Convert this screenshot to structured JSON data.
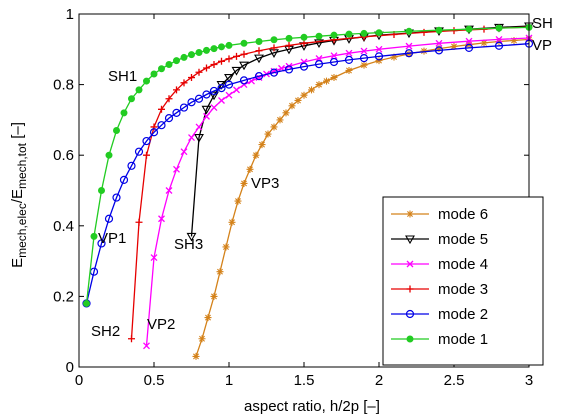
{
  "chart_data": {
    "type": "line",
    "xlabel": "aspect ratio, h/2p [–]",
    "ylabel_main": "E",
    "ylabel_sub1": "mech,elec",
    "ylabel_mid": "/E",
    "ylabel_sub2": "mech,tot",
    "ylabel_tail": " [–]",
    "xlim": [
      0,
      3
    ],
    "ylim": [
      0,
      1
    ],
    "xticks": [
      "0",
      "0.5",
      "1",
      "1.5",
      "2",
      "2.5",
      "3"
    ],
    "yticks": [
      "0",
      "0.2",
      "0.4",
      "0.6",
      "0.8",
      "1"
    ],
    "grid": false,
    "legend_position": "bottom-right",
    "annotations": [
      "SH",
      "VP",
      "SH1",
      "VP1",
      "SH2",
      "VP2",
      "SH3",
      "VP3"
    ],
    "series": [
      {
        "name": "mode 6",
        "color": "#d4821a",
        "marker": "asterisk",
        "x": [
          0.78,
          0.82,
          0.86,
          0.9,
          0.94,
          0.98,
          1.02,
          1.06,
          1.1,
          1.14,
          1.18,
          1.22,
          1.26,
          1.3,
          1.34,
          1.38,
          1.42,
          1.46,
          1.5,
          1.55,
          1.6,
          1.65,
          1.7,
          1.8,
          1.9,
          2.0,
          2.1,
          2.2,
          2.3,
          2.4,
          2.5,
          2.6,
          2.7,
          2.8,
          2.9,
          3.0
        ],
        "y": [
          0.03,
          0.08,
          0.14,
          0.2,
          0.27,
          0.34,
          0.41,
          0.47,
          0.52,
          0.56,
          0.6,
          0.63,
          0.66,
          0.68,
          0.7,
          0.72,
          0.74,
          0.755,
          0.77,
          0.785,
          0.8,
          0.81,
          0.82,
          0.84,
          0.855,
          0.868,
          0.878,
          0.887,
          0.895,
          0.902,
          0.908,
          0.913,
          0.918,
          0.922,
          0.925,
          0.928
        ]
      },
      {
        "name": "mode 5",
        "color": "#000000",
        "marker": "triangle-down",
        "x": [
          0.75,
          0.8,
          0.85,
          0.9,
          0.95,
          1.0,
          1.05,
          1.1,
          1.2,
          1.3,
          1.4,
          1.5,
          1.6,
          1.7,
          1.8,
          1.9,
          2.0,
          2.2,
          2.4,
          2.6,
          2.8,
          3.0
        ],
        "y": [
          0.37,
          0.65,
          0.73,
          0.77,
          0.8,
          0.82,
          0.84,
          0.855,
          0.875,
          0.89,
          0.9,
          0.91,
          0.918,
          0.925,
          0.93,
          0.935,
          0.94,
          0.946,
          0.952,
          0.957,
          0.962,
          0.966
        ]
      },
      {
        "name": "mode 4",
        "color": "#ff00ff",
        "marker": "x",
        "x": [
          0.45,
          0.5,
          0.55,
          0.6,
          0.65,
          0.7,
          0.75,
          0.8,
          0.85,
          0.9,
          0.95,
          1.0,
          1.05,
          1.1,
          1.15,
          1.2,
          1.25,
          1.3,
          1.35,
          1.4,
          1.5,
          1.6,
          1.7,
          1.8,
          1.9,
          2.0,
          2.2,
          2.4,
          2.6,
          2.8,
          3.0
        ],
        "y": [
          0.06,
          0.31,
          0.42,
          0.5,
          0.56,
          0.61,
          0.65,
          0.68,
          0.71,
          0.735,
          0.755,
          0.77,
          0.785,
          0.8,
          0.81,
          0.82,
          0.83,
          0.838,
          0.846,
          0.852,
          0.864,
          0.874,
          0.882,
          0.889,
          0.895,
          0.9,
          0.909,
          0.917,
          0.923,
          0.928,
          0.932
        ]
      },
      {
        "name": "mode 3",
        "color": "#e60000",
        "marker": "plus",
        "x": [
          0.35,
          0.4,
          0.45,
          0.5,
          0.55,
          0.6,
          0.65,
          0.7,
          0.75,
          0.8,
          0.85,
          0.9,
          0.95,
          1.0,
          1.05,
          1.1,
          1.2,
          1.3,
          1.4,
          1.5,
          1.7,
          1.9,
          2.1,
          2.3,
          2.5,
          2.7,
          2.8,
          3.0
        ],
        "y": [
          0.08,
          0.41,
          0.6,
          0.68,
          0.73,
          0.76,
          0.785,
          0.805,
          0.82,
          0.835,
          0.847,
          0.857,
          0.866,
          0.873,
          0.88,
          0.886,
          0.896,
          0.904,
          0.911,
          0.917,
          0.927,
          0.935,
          0.942,
          0.948,
          0.953,
          0.957,
          0.96,
          0.963
        ]
      },
      {
        "name": "mode 2",
        "color": "#0000e6",
        "marker": "circle",
        "x": [
          0.05,
          0.1,
          0.15,
          0.2,
          0.25,
          0.3,
          0.35,
          0.4,
          0.45,
          0.5,
          0.55,
          0.6,
          0.65,
          0.7,
          0.75,
          0.8,
          0.85,
          0.9,
          0.95,
          1.0,
          1.1,
          1.2,
          1.3,
          1.4,
          1.5,
          1.6,
          1.7,
          1.8,
          1.9,
          2.0,
          2.2,
          2.4,
          2.6,
          2.8,
          3.0
        ],
        "y": [
          0.18,
          0.27,
          0.35,
          0.42,
          0.48,
          0.53,
          0.57,
          0.61,
          0.64,
          0.665,
          0.685,
          0.705,
          0.72,
          0.735,
          0.75,
          0.76,
          0.772,
          0.782,
          0.79,
          0.8,
          0.812,
          0.824,
          0.834,
          0.843,
          0.851,
          0.858,
          0.864,
          0.87,
          0.875,
          0.88,
          0.889,
          0.897,
          0.904,
          0.91,
          0.916
        ]
      },
      {
        "name": "mode 1",
        "color": "#22cc22",
        "marker": "dot",
        "x": [
          0.05,
          0.1,
          0.15,
          0.2,
          0.25,
          0.3,
          0.35,
          0.4,
          0.45,
          0.5,
          0.55,
          0.6,
          0.65,
          0.7,
          0.75,
          0.8,
          0.85,
          0.9,
          0.95,
          1.0,
          1.1,
          1.2,
          1.3,
          1.4,
          1.5,
          1.6,
          1.7,
          1.8,
          1.9,
          2.0,
          2.2,
          2.4,
          2.6,
          2.8,
          3.0
        ],
        "y": [
          0.18,
          0.37,
          0.5,
          0.6,
          0.67,
          0.72,
          0.76,
          0.785,
          0.81,
          0.83,
          0.845,
          0.857,
          0.868,
          0.877,
          0.885,
          0.891,
          0.897,
          0.902,
          0.907,
          0.911,
          0.917,
          0.922,
          0.927,
          0.931,
          0.934,
          0.937,
          0.94,
          0.943,
          0.945,
          0.947,
          0.951,
          0.954,
          0.957,
          0.96,
          0.962
        ]
      }
    ]
  }
}
